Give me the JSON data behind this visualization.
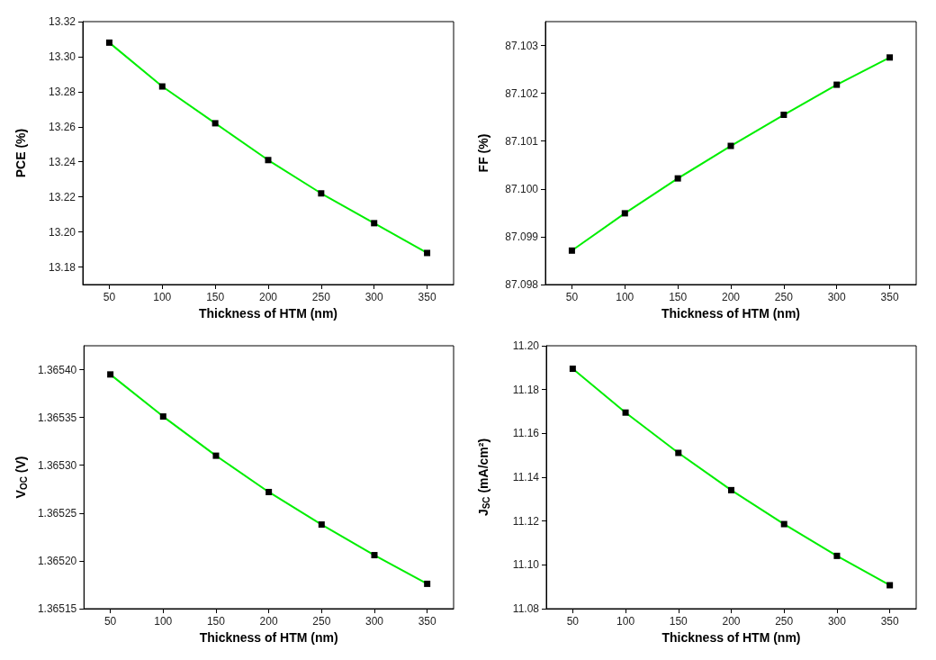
{
  "chart_data": [
    {
      "type": "line",
      "xlabel": "Thickness of HTM (nm)",
      "ylabel": "PCE (%)",
      "xlim": [
        25,
        375
      ],
      "xticks": [
        50,
        100,
        150,
        200,
        250,
        300,
        350
      ],
      "ylim": [
        13.17,
        13.32
      ],
      "yticks": [
        {
          "value": 13.18,
          "label": "13.18"
        },
        {
          "value": 13.2,
          "label": "13.20"
        },
        {
          "value": 13.22,
          "label": "13.22"
        },
        {
          "value": 13.24,
          "label": "13.24"
        },
        {
          "value": 13.26,
          "label": "13.26"
        },
        {
          "value": 13.28,
          "label": "13.28"
        },
        {
          "value": 13.3,
          "label": "13.30"
        },
        {
          "value": 13.32,
          "label": "13.32"
        }
      ],
      "marker": "square",
      "line_style": "solid",
      "series": [
        {
          "color": "#00ee00",
          "x": [
            50,
            100,
            150,
            200,
            250,
            300,
            350
          ],
          "values": [
            13.308,
            13.283,
            13.262,
            13.241,
            13.222,
            13.205,
            13.188
          ]
        }
      ]
    },
    {
      "type": "line",
      "xlabel": "Thickness of HTM (nm)",
      "ylabel": "FF (%)",
      "xlim": [
        25,
        375
      ],
      "xticks": [
        50,
        100,
        150,
        200,
        250,
        300,
        350
      ],
      "ylim": [
        87.098,
        87.1035
      ],
      "yticks": [
        {
          "value": 87.098,
          "label": "87.098"
        },
        {
          "value": 87.099,
          "label": "87.099"
        },
        {
          "value": 87.1,
          "label": "87.100"
        },
        {
          "value": 87.101,
          "label": "87.101"
        },
        {
          "value": 87.102,
          "label": "87.102"
        },
        {
          "value": 87.103,
          "label": "87.103"
        }
      ],
      "marker": "square",
      "line_style": "solid",
      "series": [
        {
          "color": "#00ee00",
          "x": [
            50,
            100,
            150,
            200,
            250,
            300,
            350
          ],
          "values": [
            87.09871,
            87.09949,
            87.10022,
            87.1009,
            87.10155,
            87.10218,
            87.10275
          ]
        }
      ]
    },
    {
      "type": "line",
      "xlabel": "Thickness of HTM (nm)",
      "ylabel": "V$_{OC}$ (V)",
      "xlim": [
        25,
        375
      ],
      "xticks": [
        50,
        100,
        150,
        200,
        250,
        300,
        350
      ],
      "ylim": [
        1.36515,
        1.365425
      ],
      "yticks": [
        {
          "value": 1.36515,
          "label": "1.36515"
        },
        {
          "value": 1.3652,
          "label": "1.36520"
        },
        {
          "value": 1.36525,
          "label": "1.36525"
        },
        {
          "value": 1.3653,
          "label": "1.36530"
        },
        {
          "value": 1.36535,
          "label": "1.36535"
        },
        {
          "value": 1.3654,
          "label": "1.36540"
        }
      ],
      "marker": "square",
      "line_style": "solid",
      "series": [
        {
          "color": "#00ee00",
          "x": [
            50,
            100,
            150,
            200,
            250,
            300,
            350
          ],
          "values": [
            1.365395,
            1.365351,
            1.36531,
            1.365272,
            1.365238,
            1.365206,
            1.365176
          ]
        }
      ]
    },
    {
      "type": "line",
      "xlabel": "Thickness of HTM (nm)",
      "ylabel": "J$_{SC}$ (mA/cm²)",
      "xlim": [
        25,
        375
      ],
      "xticks": [
        50,
        100,
        150,
        200,
        250,
        300,
        350
      ],
      "ylim": [
        11.08,
        11.2
      ],
      "yticks": [
        {
          "value": 11.08,
          "label": "11.08"
        },
        {
          "value": 11.1,
          "label": "11.10"
        },
        {
          "value": 11.12,
          "label": "11.12"
        },
        {
          "value": 11.14,
          "label": "11.14"
        },
        {
          "value": 11.16,
          "label": "11.16"
        },
        {
          "value": 11.18,
          "label": "11.18"
        },
        {
          "value": 11.2,
          "label": "11.20"
        }
      ],
      "marker": "square",
      "line_style": "solid",
      "series": [
        {
          "color": "#00ee00",
          "x": [
            50,
            100,
            150,
            200,
            250,
            300,
            350
          ],
          "values": [
            11.1895,
            11.1695,
            11.1511,
            11.1341,
            11.1186,
            11.1041,
            11.0907
          ]
        }
      ]
    }
  ]
}
